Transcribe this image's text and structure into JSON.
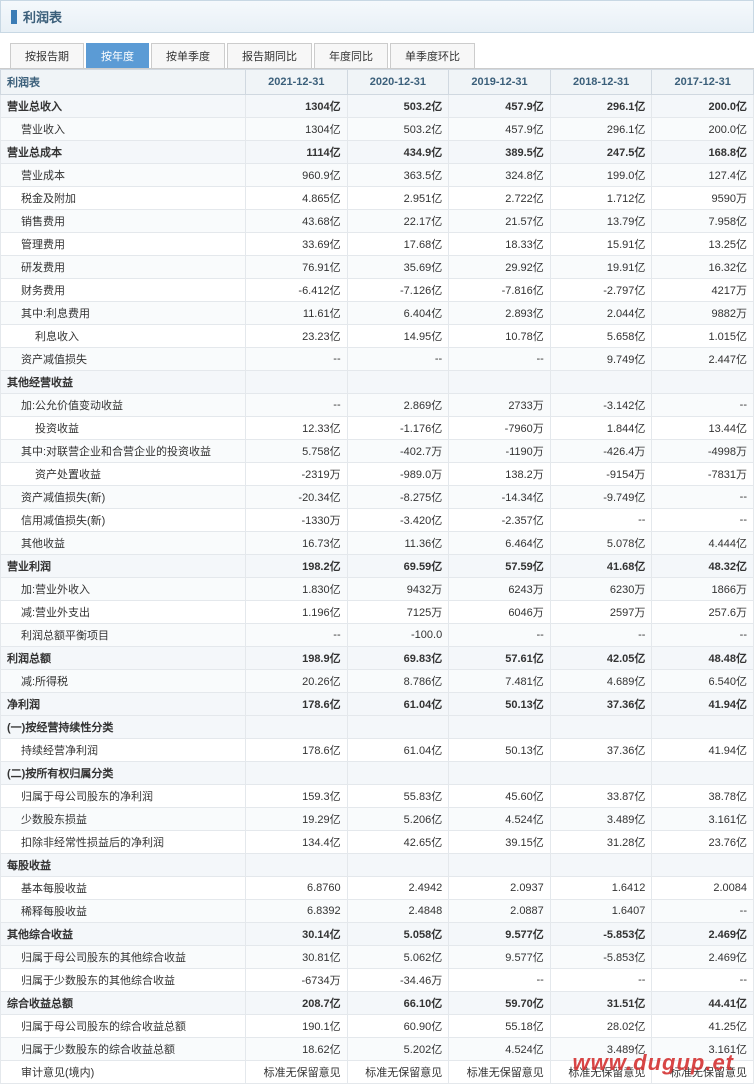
{
  "header": {
    "title": "利润表"
  },
  "tabs": [
    {
      "label": "按报告期",
      "active": false
    },
    {
      "label": "按年度",
      "active": true
    },
    {
      "label": "按单季度",
      "active": false
    },
    {
      "label": "报告期同比",
      "active": false
    },
    {
      "label": "年度同比",
      "active": false
    },
    {
      "label": "单季度环比",
      "active": false
    }
  ],
  "table": {
    "headers": [
      "利润表",
      "2021-12-31",
      "2020-12-31",
      "2019-12-31",
      "2018-12-31",
      "2017-12-31"
    ],
    "rows": [
      {
        "label": "营业总收入",
        "vals": [
          "1304亿",
          "503.2亿",
          "457.9亿",
          "296.1亿",
          "200.0亿"
        ],
        "section": true
      },
      {
        "label": "营业收入",
        "vals": [
          "1304亿",
          "503.2亿",
          "457.9亿",
          "296.1亿",
          "200.0亿"
        ],
        "indent": 1
      },
      {
        "label": "营业总成本",
        "vals": [
          "1114亿",
          "434.9亿",
          "389.5亿",
          "247.5亿",
          "168.8亿"
        ],
        "section": true
      },
      {
        "label": "营业成本",
        "vals": [
          "960.9亿",
          "363.5亿",
          "324.8亿",
          "199.0亿",
          "127.4亿"
        ],
        "indent": 1
      },
      {
        "label": "税金及附加",
        "vals": [
          "4.865亿",
          "2.951亿",
          "2.722亿",
          "1.712亿",
          "9590万"
        ],
        "indent": 1
      },
      {
        "label": "销售费用",
        "vals": [
          "43.68亿",
          "22.17亿",
          "21.57亿",
          "13.79亿",
          "7.958亿"
        ],
        "indent": 1
      },
      {
        "label": "管理费用",
        "vals": [
          "33.69亿",
          "17.68亿",
          "18.33亿",
          "15.91亿",
          "13.25亿"
        ],
        "indent": 1
      },
      {
        "label": "研发费用",
        "vals": [
          "76.91亿",
          "35.69亿",
          "29.92亿",
          "19.91亿",
          "16.32亿"
        ],
        "indent": 1
      },
      {
        "label": "财务费用",
        "vals": [
          "-6.412亿",
          "-7.126亿",
          "-7.816亿",
          "-2.797亿",
          "4217万"
        ],
        "indent": 1
      },
      {
        "label": "其中:利息费用",
        "vals": [
          "11.61亿",
          "6.404亿",
          "2.893亿",
          "2.044亿",
          "9882万"
        ],
        "indent": 1
      },
      {
        "label": "利息收入",
        "vals": [
          "23.23亿",
          "14.95亿",
          "10.78亿",
          "5.658亿",
          "1.015亿"
        ],
        "indent": 2
      },
      {
        "label": "资产减值损失",
        "vals": [
          "--",
          "--",
          "--",
          "9.749亿",
          "2.447亿"
        ],
        "indent": 1
      },
      {
        "label": "其他经营收益",
        "vals": [
          "",
          "",
          "",
          "",
          ""
        ],
        "section": true
      },
      {
        "label": "加:公允价值变动收益",
        "vals": [
          "--",
          "2.869亿",
          "2733万",
          "-3.142亿",
          "--"
        ],
        "indent": 1
      },
      {
        "label": "投资收益",
        "vals": [
          "12.33亿",
          "-1.176亿",
          "-7960万",
          "1.844亿",
          "13.44亿"
        ],
        "indent": 2
      },
      {
        "label": "其中:对联营企业和合营企业的投资收益",
        "vals": [
          "5.758亿",
          "-402.7万",
          "-1190万",
          "-426.4万",
          "-4998万"
        ],
        "indent": 1
      },
      {
        "label": "资产处置收益",
        "vals": [
          "-2319万",
          "-989.0万",
          "138.2万",
          "-9154万",
          "-7831万"
        ],
        "indent": 2
      },
      {
        "label": "资产减值损失(新)",
        "vals": [
          "-20.34亿",
          "-8.275亿",
          "-14.34亿",
          "-9.749亿",
          "--"
        ],
        "indent": 1
      },
      {
        "label": "信用减值损失(新)",
        "vals": [
          "-1330万",
          "-3.420亿",
          "-2.357亿",
          "--",
          "--"
        ],
        "indent": 1
      },
      {
        "label": "其他收益",
        "vals": [
          "16.73亿",
          "11.36亿",
          "6.464亿",
          "5.078亿",
          "4.444亿"
        ],
        "indent": 1
      },
      {
        "label": "营业利润",
        "vals": [
          "198.2亿",
          "69.59亿",
          "57.59亿",
          "41.68亿",
          "48.32亿"
        ],
        "section": true
      },
      {
        "label": "加:营业外收入",
        "vals": [
          "1.830亿",
          "9432万",
          "6243万",
          "6230万",
          "1866万"
        ],
        "indent": 1
      },
      {
        "label": "减:营业外支出",
        "vals": [
          "1.196亿",
          "7125万",
          "6046万",
          "2597万",
          "257.6万"
        ],
        "indent": 1
      },
      {
        "label": "利润总额平衡项目",
        "vals": [
          "--",
          "-100.0",
          "--",
          "--",
          "--"
        ],
        "indent": 1
      },
      {
        "label": "利润总额",
        "vals": [
          "198.9亿",
          "69.83亿",
          "57.61亿",
          "42.05亿",
          "48.48亿"
        ],
        "section": true
      },
      {
        "label": "减:所得税",
        "vals": [
          "20.26亿",
          "8.786亿",
          "7.481亿",
          "4.689亿",
          "6.540亿"
        ],
        "indent": 1
      },
      {
        "label": "净利润",
        "vals": [
          "178.6亿",
          "61.04亿",
          "50.13亿",
          "37.36亿",
          "41.94亿"
        ],
        "section": true
      },
      {
        "label": "(一)按经营持续性分类",
        "vals": [
          "",
          "",
          "",
          "",
          ""
        ],
        "section": true
      },
      {
        "label": "持续经营净利润",
        "vals": [
          "178.6亿",
          "61.04亿",
          "50.13亿",
          "37.36亿",
          "41.94亿"
        ],
        "indent": 1
      },
      {
        "label": "(二)按所有权归属分类",
        "vals": [
          "",
          "",
          "",
          "",
          ""
        ],
        "section": true
      },
      {
        "label": "归属于母公司股东的净利润",
        "vals": [
          "159.3亿",
          "55.83亿",
          "45.60亿",
          "33.87亿",
          "38.78亿"
        ],
        "indent": 1
      },
      {
        "label": "少数股东损益",
        "vals": [
          "19.29亿",
          "5.206亿",
          "4.524亿",
          "3.489亿",
          "3.161亿"
        ],
        "indent": 1
      },
      {
        "label": "扣除非经常性损益后的净利润",
        "vals": [
          "134.4亿",
          "42.65亿",
          "39.15亿",
          "31.28亿",
          "23.76亿"
        ],
        "indent": 1
      },
      {
        "label": "每股收益",
        "vals": [
          "",
          "",
          "",
          "",
          ""
        ],
        "section": true
      },
      {
        "label": "基本每股收益",
        "vals": [
          "6.8760",
          "2.4942",
          "2.0937",
          "1.6412",
          "2.0084"
        ],
        "indent": 1
      },
      {
        "label": "稀释每股收益",
        "vals": [
          "6.8392",
          "2.4848",
          "2.0887",
          "1.6407",
          "--"
        ],
        "indent": 1
      },
      {
        "label": "其他综合收益",
        "vals": [
          "30.14亿",
          "5.058亿",
          "9.577亿",
          "-5.853亿",
          "2.469亿"
        ],
        "section": true
      },
      {
        "label": "归属于母公司股东的其他综合收益",
        "vals": [
          "30.81亿",
          "5.062亿",
          "9.577亿",
          "-5.853亿",
          "2.469亿"
        ],
        "indent": 1
      },
      {
        "label": "归属于少数股东的其他综合收益",
        "vals": [
          "-6734万",
          "-34.46万",
          "--",
          "--",
          "--"
        ],
        "indent": 1
      },
      {
        "label": "综合收益总额",
        "vals": [
          "208.7亿",
          "66.10亿",
          "59.70亿",
          "31.51亿",
          "44.41亿"
        ],
        "section": true
      },
      {
        "label": "归属于母公司股东的综合收益总额",
        "vals": [
          "190.1亿",
          "60.90亿",
          "55.18亿",
          "28.02亿",
          "41.25亿"
        ],
        "indent": 1
      },
      {
        "label": "归属于少数股东的综合收益总额",
        "vals": [
          "18.62亿",
          "5.202亿",
          "4.524亿",
          "3.489亿",
          "3.161亿"
        ],
        "indent": 1
      },
      {
        "label": "审计意见(境内)",
        "vals": [
          "标准无保留意见",
          "标准无保留意见",
          "标准无保留意见",
          "标准无保留意见",
          "标准无保留意见"
        ],
        "indent": 1
      }
    ]
  },
  "watermark": "www.dugup.et",
  "colors": {
    "header_text": "#3b5f7a",
    "active_tab": "#5b9bd5",
    "border": "#d0d8e0"
  }
}
